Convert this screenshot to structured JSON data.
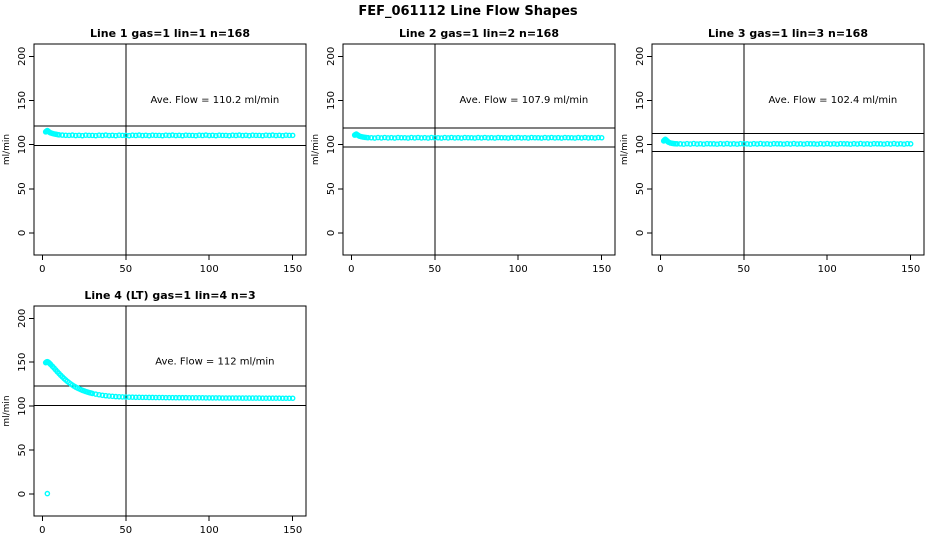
{
  "title": "FEF_061112  Line Flow Shapes",
  "colors": {
    "points": "#00ffff",
    "axis": "#000000",
    "background": "#ffffff",
    "text": "#000000"
  },
  "chart_data": [
    {
      "type": "scatter",
      "title": "Line 1 gas=1 lin=1 n=168",
      "ave_flow_label": "Ave. Flow =  110.2  ml/min",
      "ave_flow": 110.2,
      "ylabel": "ml/min",
      "xticks": [
        0,
        50,
        100,
        150
      ],
      "yticks": [
        0,
        50,
        100,
        150,
        200
      ],
      "xlim": [
        -5,
        158
      ],
      "ylim": [
        -25,
        214
      ],
      "vlines": [
        50
      ],
      "hlines": [
        121.2,
        99.2
      ],
      "points": [
        [
          2,
          114.5
        ],
        [
          2.5,
          115.3
        ],
        [
          3,
          116
        ],
        [
          3.5,
          115.2
        ],
        [
          4,
          114.4
        ],
        [
          4.5,
          113.8
        ],
        [
          5,
          113.3
        ],
        [
          6,
          112.7
        ],
        [
          7,
          112.2
        ],
        [
          8,
          111.8
        ],
        [
          9,
          111.4
        ],
        [
          10,
          111.1
        ],
        [
          12,
          110.8
        ],
        [
          14,
          110.6
        ],
        [
          16,
          110.5
        ],
        [
          18,
          110.8
        ],
        [
          20,
          110.3
        ],
        [
          22,
          110.6
        ],
        [
          24,
          110.2
        ],
        [
          26,
          110.7
        ],
        [
          28,
          110.5
        ],
        [
          30,
          110.5
        ],
        [
          32,
          110.2
        ],
        [
          34,
          110.7
        ],
        [
          36,
          110.4
        ],
        [
          38,
          110.8
        ],
        [
          40,
          110.3
        ],
        [
          42,
          110.6
        ],
        [
          44,
          110.2
        ],
        [
          46,
          110.7
        ],
        [
          48,
          110.5
        ],
        [
          50,
          110.5
        ],
        [
          52,
          110.2
        ],
        [
          54,
          110.7
        ],
        [
          56,
          110.4
        ],
        [
          58,
          110.8
        ],
        [
          60,
          110.3
        ],
        [
          62,
          110.6
        ],
        [
          64,
          110.2
        ],
        [
          66,
          110.7
        ],
        [
          68,
          110.5
        ],
        [
          70,
          110.5
        ],
        [
          72,
          110.2
        ],
        [
          74,
          110.7
        ],
        [
          76,
          110.4
        ],
        [
          78,
          110.8
        ],
        [
          80,
          110.3
        ],
        [
          82,
          110.6
        ],
        [
          84,
          110.2
        ],
        [
          86,
          110.7
        ],
        [
          88,
          110.5
        ],
        [
          90,
          110.5
        ],
        [
          92,
          110.2
        ],
        [
          94,
          110.7
        ],
        [
          96,
          110.4
        ],
        [
          98,
          110.8
        ],
        [
          100,
          110.3
        ],
        [
          102,
          110.6
        ],
        [
          104,
          110.2
        ],
        [
          106,
          110.7
        ],
        [
          108,
          110.5
        ],
        [
          110,
          110.5
        ],
        [
          112,
          110.2
        ],
        [
          114,
          110.7
        ],
        [
          116,
          110.4
        ],
        [
          118,
          110.8
        ],
        [
          120,
          110.3
        ],
        [
          122,
          110.6
        ],
        [
          124,
          110.2
        ],
        [
          126,
          110.7
        ],
        [
          128,
          110.5
        ],
        [
          130,
          110.5
        ],
        [
          132,
          110.2
        ],
        [
          134,
          110.7
        ],
        [
          136,
          110.4
        ],
        [
          138,
          110.8
        ],
        [
          140,
          110.3
        ],
        [
          142,
          110.6
        ],
        [
          144,
          110.2
        ],
        [
          146,
          110.7
        ],
        [
          148,
          110.5
        ],
        [
          150,
          110.5
        ]
      ]
    },
    {
      "type": "scatter",
      "title": "Line 2 gas=1 lin=2 n=168",
      "ave_flow_label": "Ave. Flow =  107.9  ml/min",
      "ave_flow": 107.9,
      "ylabel": "ml/min",
      "xticks": [
        0,
        50,
        100,
        150
      ],
      "yticks": [
        0,
        50,
        100,
        150,
        200
      ],
      "xlim": [
        -5,
        158
      ],
      "ylim": [
        -25,
        214
      ],
      "vlines": [
        50
      ],
      "hlines": [
        118.7,
        97.1
      ],
      "points": [
        [
          2,
          110.8
        ],
        [
          2.5,
          111.5
        ],
        [
          3,
          112
        ],
        [
          3.5,
          111.3
        ],
        [
          4,
          110.6
        ],
        [
          4.5,
          110
        ],
        [
          5,
          109.5
        ],
        [
          6,
          109
        ],
        [
          7,
          108.6
        ],
        [
          8,
          108.3
        ],
        [
          9,
          108.1
        ],
        [
          10,
          107.9
        ],
        [
          12,
          107.8
        ],
        [
          14,
          107.5
        ],
        [
          16,
          108
        ],
        [
          18,
          107.6
        ],
        [
          20,
          108.1
        ],
        [
          22,
          107.6
        ],
        [
          24,
          107.9
        ],
        [
          26,
          107.5
        ],
        [
          28,
          108
        ],
        [
          30,
          107.8
        ],
        [
          32,
          107.8
        ],
        [
          34,
          107.5
        ],
        [
          36,
          108
        ],
        [
          38,
          107.6
        ],
        [
          40,
          108.1
        ],
        [
          42,
          107.6
        ],
        [
          44,
          107.9
        ],
        [
          46,
          107.5
        ],
        [
          48,
          108
        ],
        [
          50,
          107.8
        ],
        [
          52,
          107.8
        ],
        [
          54,
          107.5
        ],
        [
          56,
          108
        ],
        [
          58,
          107.6
        ],
        [
          60,
          108.1
        ],
        [
          62,
          107.6
        ],
        [
          64,
          107.9
        ],
        [
          66,
          107.5
        ],
        [
          68,
          108
        ],
        [
          70,
          107.8
        ],
        [
          72,
          107.8
        ],
        [
          74,
          107.5
        ],
        [
          76,
          108
        ],
        [
          78,
          107.6
        ],
        [
          80,
          108.1
        ],
        [
          82,
          107.6
        ],
        [
          84,
          107.9
        ],
        [
          86,
          107.5
        ],
        [
          88,
          108
        ],
        [
          90,
          107.8
        ],
        [
          92,
          107.8
        ],
        [
          94,
          107.5
        ],
        [
          96,
          108
        ],
        [
          98,
          107.6
        ],
        [
          100,
          108.1
        ],
        [
          102,
          107.6
        ],
        [
          104,
          107.9
        ],
        [
          106,
          107.5
        ],
        [
          108,
          108
        ],
        [
          110,
          107.8
        ],
        [
          112,
          107.8
        ],
        [
          114,
          107.5
        ],
        [
          116,
          108
        ],
        [
          118,
          107.6
        ],
        [
          120,
          108.1
        ],
        [
          122,
          107.6
        ],
        [
          124,
          107.9
        ],
        [
          126,
          107.5
        ],
        [
          128,
          108
        ],
        [
          130,
          107.8
        ],
        [
          132,
          107.8
        ],
        [
          134,
          107.5
        ],
        [
          136,
          108
        ],
        [
          138,
          107.6
        ],
        [
          140,
          108.1
        ],
        [
          142,
          107.6
        ],
        [
          144,
          107.9
        ],
        [
          146,
          107.5
        ],
        [
          148,
          108
        ],
        [
          150,
          107.8
        ]
      ]
    },
    {
      "type": "scatter",
      "title": "Line 3 gas=1 lin=3 n=168",
      "ave_flow_label": "Ave. Flow =  102.4  ml/min",
      "ave_flow": 102.4,
      "ylabel": "ml/min",
      "xticks": [
        0,
        50,
        100,
        150
      ],
      "yticks": [
        0,
        50,
        100,
        150,
        200
      ],
      "xlim": [
        -5,
        158
      ],
      "ylim": [
        -25,
        214
      ],
      "vlines": [
        50
      ],
      "hlines": [
        112.6,
        92.2
      ],
      "points": [
        [
          2,
          104.2
        ],
        [
          2.5,
          105.3
        ],
        [
          3,
          106
        ],
        [
          3.5,
          105.2
        ],
        [
          4,
          104.3
        ],
        [
          4.5,
          103.4
        ],
        [
          5,
          102.7
        ],
        [
          6,
          101.9
        ],
        [
          7,
          101.5
        ],
        [
          8,
          101.2
        ],
        [
          9,
          101
        ],
        [
          10,
          100.9
        ],
        [
          12,
          100.9
        ],
        [
          14,
          100.6
        ],
        [
          16,
          101.1
        ],
        [
          18,
          100.7
        ],
        [
          20,
          101.2
        ],
        [
          22,
          100.7
        ],
        [
          24,
          101
        ],
        [
          26,
          100.6
        ],
        [
          28,
          101.1
        ],
        [
          30,
          100.9
        ],
        [
          32,
          100.9
        ],
        [
          34,
          100.6
        ],
        [
          36,
          101.1
        ],
        [
          38,
          100.7
        ],
        [
          40,
          101.2
        ],
        [
          42,
          100.7
        ],
        [
          44,
          101
        ],
        [
          46,
          100.6
        ],
        [
          48,
          101.1
        ],
        [
          50,
          100.9
        ],
        [
          52,
          100.9
        ],
        [
          54,
          100.6
        ],
        [
          56,
          101.1
        ],
        [
          58,
          100.7
        ],
        [
          60,
          101.2
        ],
        [
          62,
          100.7
        ],
        [
          64,
          101
        ],
        [
          66,
          100.6
        ],
        [
          68,
          101.1
        ],
        [
          70,
          100.9
        ],
        [
          72,
          100.9
        ],
        [
          74,
          100.6
        ],
        [
          76,
          101.1
        ],
        [
          78,
          100.7
        ],
        [
          80,
          101.2
        ],
        [
          82,
          100.7
        ],
        [
          84,
          101
        ],
        [
          86,
          100.6
        ],
        [
          88,
          101.1
        ],
        [
          90,
          100.9
        ],
        [
          92,
          100.9
        ],
        [
          94,
          100.6
        ],
        [
          96,
          101.1
        ],
        [
          98,
          100.7
        ],
        [
          100,
          101.2
        ],
        [
          102,
          100.7
        ],
        [
          104,
          101
        ],
        [
          106,
          100.6
        ],
        [
          108,
          101.1
        ],
        [
          110,
          100.9
        ],
        [
          112,
          100.9
        ],
        [
          114,
          100.6
        ],
        [
          116,
          101.1
        ],
        [
          118,
          100.7
        ],
        [
          120,
          101.2
        ],
        [
          122,
          100.7
        ],
        [
          124,
          101
        ],
        [
          126,
          100.6
        ],
        [
          128,
          101.1
        ],
        [
          130,
          100.9
        ],
        [
          132,
          100.9
        ],
        [
          134,
          100.6
        ],
        [
          136,
          101.1
        ],
        [
          138,
          100.7
        ],
        [
          140,
          101.2
        ],
        [
          142,
          100.7
        ],
        [
          144,
          101
        ],
        [
          146,
          100.6
        ],
        [
          148,
          101.1
        ],
        [
          150,
          100.9
        ]
      ]
    },
    {
      "type": "scatter",
      "title": "Line 4 (LT) gas=1 lin=4 n=3",
      "ave_flow_label": "Ave. Flow =  112  ml/min",
      "ave_flow": 112,
      "ylabel": "ml/min",
      "xticks": [
        0,
        50,
        100,
        150
      ],
      "yticks": [
        0,
        50,
        100,
        150,
        200
      ],
      "xlim": [
        -5,
        158
      ],
      "ylim": [
        -25,
        214
      ],
      "vlines": [
        50
      ],
      "hlines": [
        123.2,
        100.8
      ],
      "points": [
        [
          3,
          0.5
        ],
        [
          2,
          149.5
        ],
        [
          2.5,
          150.3
        ],
        [
          3,
          150.6
        ],
        [
          3.5,
          150.2
        ],
        [
          4,
          149.3
        ],
        [
          4.5,
          148.4
        ],
        [
          5,
          147.4
        ],
        [
          6,
          145.4
        ],
        [
          7,
          143.4
        ],
        [
          8,
          141.3
        ],
        [
          9,
          139.2
        ],
        [
          10,
          137.2
        ],
        [
          11,
          135.2
        ],
        [
          12,
          133.3
        ],
        [
          13,
          131.5
        ],
        [
          14,
          129.8
        ],
        [
          15,
          128.2
        ],
        [
          16,
          126.7
        ],
        [
          17,
          125.3
        ],
        [
          18,
          124
        ],
        [
          19,
          122.8
        ],
        [
          20,
          121.7
        ],
        [
          21,
          120.7
        ],
        [
          22,
          119.8
        ],
        [
          23,
          118.9
        ],
        [
          24,
          118.1
        ],
        [
          25,
          117.4
        ],
        [
          26,
          116.7
        ],
        [
          27,
          116.1
        ],
        [
          28,
          115.5
        ],
        [
          29,
          115
        ],
        [
          30,
          114.5
        ],
        [
          32,
          113.7
        ],
        [
          34,
          113
        ],
        [
          36,
          112.4
        ],
        [
          38,
          111.9
        ],
        [
          40,
          111.5
        ],
        [
          42,
          111.2
        ],
        [
          44,
          110.9
        ],
        [
          46,
          110.7
        ],
        [
          48,
          110.5
        ],
        [
          50,
          110.4
        ],
        [
          52,
          110.3
        ],
        [
          54,
          110.2
        ],
        [
          56,
          110.1
        ],
        [
          58,
          110.1
        ],
        [
          60,
          110
        ],
        [
          62,
          110
        ],
        [
          64,
          109.9
        ],
        [
          66,
          109.9
        ],
        [
          68,
          109.8
        ],
        [
          70,
          109.8
        ],
        [
          72,
          109.8
        ],
        [
          74,
          109.7
        ],
        [
          76,
          109.7
        ],
        [
          78,
          109.7
        ],
        [
          80,
          109.6
        ],
        [
          82,
          109.6
        ],
        [
          84,
          109.6
        ],
        [
          86,
          109.6
        ],
        [
          88,
          109.5
        ],
        [
          90,
          109.5
        ],
        [
          92,
          109.5
        ],
        [
          94,
          109.5
        ],
        [
          96,
          109.5
        ],
        [
          98,
          109.4
        ],
        [
          100,
          109.4
        ],
        [
          102,
          109.4
        ],
        [
          104,
          109.4
        ],
        [
          106,
          109.4
        ],
        [
          108,
          109.3
        ],
        [
          110,
          109.3
        ],
        [
          112,
          109.3
        ],
        [
          114,
          109.3
        ],
        [
          116,
          109.3
        ],
        [
          118,
          109.3
        ],
        [
          120,
          109.2
        ],
        [
          122,
          109.2
        ],
        [
          124,
          109.2
        ],
        [
          126,
          109.2
        ],
        [
          128,
          109.2
        ],
        [
          130,
          109.2
        ],
        [
          132,
          109.1
        ],
        [
          134,
          109.1
        ],
        [
          136,
          109.1
        ],
        [
          138,
          109.1
        ],
        [
          140,
          109.1
        ],
        [
          142,
          109.1
        ],
        [
          144,
          109
        ],
        [
          146,
          109
        ],
        [
          148,
          109
        ],
        [
          150,
          109
        ]
      ]
    }
  ]
}
